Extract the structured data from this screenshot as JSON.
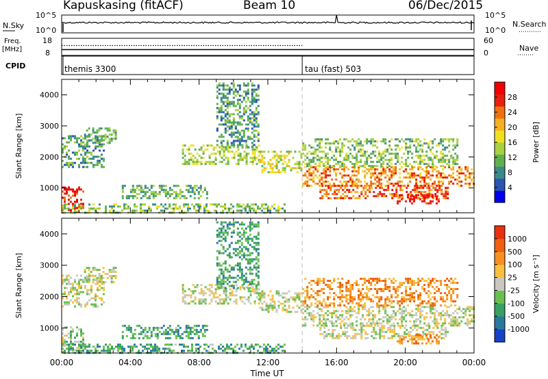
{
  "header": {
    "station": "Kapuskasing (fitACF)",
    "beam": "Beam 10",
    "date": "06/Dec/2015"
  },
  "side_labels": {
    "nsky": "N.Sky",
    "nsky_ticks": [
      "10^5",
      "10^0"
    ],
    "nsearch": "N.Search",
    "nsearch_ticks": [
      "10^5",
      "10^0"
    ],
    "freq": "Freq.",
    "freq_unit": "[MHz]",
    "freq_ticks": [
      "18",
      "8"
    ],
    "nave": "Nave",
    "nave_ticks": [
      "60",
      "0"
    ],
    "cpid": "CPID"
  },
  "cpid_segments": [
    {
      "label": "themis 3300",
      "start_hour": 0,
      "end_hour": 14
    },
    {
      "label": "tau (fast) 503",
      "start_hour": 14,
      "end_hour": 24
    }
  ],
  "chart_data": [
    {
      "type": "heatmap",
      "panel": "power",
      "ylabel": "Slant Range [km]",
      "xlabel": "",
      "xlim": [
        0,
        24
      ],
      "ylim": [
        200,
        4500
      ],
      "y_ticks": [
        1000,
        2000,
        3000,
        4000
      ],
      "colorbar": {
        "label": "Power [dB]",
        "ticks": [
          "4",
          "8",
          "12",
          "16",
          "20",
          "24",
          "28"
        ],
        "colors": [
          "#0000ee",
          "#2a55b0",
          "#3a8a8a",
          "#60b050",
          "#a8d040",
          "#f0e020",
          "#f8b020",
          "#f07010",
          "#e82010",
          "#f00000"
        ]
      },
      "regions": [
        {
          "t": [
            0.0,
            1.3
          ],
          "r": [
            250,
            1050
          ],
          "level": 0.86
        },
        {
          "t": [
            0.0,
            2.5
          ],
          "r": [
            1700,
            2700
          ],
          "level": 0.3
        },
        {
          "t": [
            1.3,
            3.2
          ],
          "r": [
            2450,
            2950
          ],
          "level": 0.35
        },
        {
          "t": [
            3.5,
            8.5
          ],
          "r": [
            700,
            1100
          ],
          "level": 0.35
        },
        {
          "t": [
            7.0,
            11.5
          ],
          "r": [
            1800,
            2400
          ],
          "level": 0.45
        },
        {
          "t": [
            9.0,
            11.5
          ],
          "r": [
            2300,
            4400
          ],
          "level": 0.3
        },
        {
          "t": [
            11.5,
            14.0
          ],
          "r": [
            1500,
            2200
          ],
          "level": 0.5
        },
        {
          "t": [
            14.0,
            24.0
          ],
          "r": [
            1100,
            1700
          ],
          "level": 0.72
        },
        {
          "t": [
            15.0,
            22.5
          ],
          "r": [
            700,
            1100
          ],
          "level": 0.78
        },
        {
          "t": [
            19.5,
            22.0
          ],
          "r": [
            500,
            800
          ],
          "level": 0.92
        },
        {
          "t": [
            0.0,
            13.0
          ],
          "r": [
            200,
            500
          ],
          "level": 0.4
        },
        {
          "t": [
            14.0,
            23.0
          ],
          "r": [
            1700,
            2600
          ],
          "level": 0.4
        }
      ]
    },
    {
      "type": "heatmap",
      "panel": "velocity",
      "ylabel": "Slant Range [km]",
      "xlabel": "Time UT",
      "xlim": [
        0,
        24
      ],
      "ylim": [
        200,
        4500
      ],
      "y_ticks": [
        1000,
        2000,
        3000,
        4000
      ],
      "x_ticks": [
        "00:00",
        "04:00",
        "08:00",
        "12:00",
        "16:00",
        "20:00",
        "00:00"
      ],
      "colorbar": {
        "label": "Velocity [m s⁻¹]",
        "ticks": [
          "1000",
          "500",
          "100",
          "25",
          "-25",
          "-100",
          "-500",
          "-1000"
        ],
        "colors": [
          "#1840c8",
          "#2878a0",
          "#38a060",
          "#68c050",
          "#c8c8c0",
          "#f8c040",
          "#f89020",
          "#f06010",
          "#e83010"
        ]
      },
      "regions": [
        {
          "t": [
            0.0,
            1.3
          ],
          "r": [
            250,
            1050
          ],
          "level": 0.45
        },
        {
          "t": [
            0.0,
            2.5
          ],
          "r": [
            1700,
            2700
          ],
          "level": 0.5
        },
        {
          "t": [
            1.3,
            3.2
          ],
          "r": [
            2450,
            2950
          ],
          "level": 0.5
        },
        {
          "t": [
            3.5,
            8.5
          ],
          "r": [
            700,
            1100
          ],
          "level": 0.3
        },
        {
          "t": [
            7.0,
            11.5
          ],
          "r": [
            1800,
            2400
          ],
          "level": 0.5
        },
        {
          "t": [
            9.0,
            11.5
          ],
          "r": [
            2300,
            4400
          ],
          "level": 0.3
        },
        {
          "t": [
            11.5,
            14.0
          ],
          "r": [
            1500,
            2200
          ],
          "level": 0.5
        },
        {
          "t": [
            14.0,
            24.0
          ],
          "r": [
            1100,
            1700
          ],
          "level": 0.5
        },
        {
          "t": [
            15.0,
            22.5
          ],
          "r": [
            700,
            1100
          ],
          "level": 0.5
        },
        {
          "t": [
            19.5,
            22.0
          ],
          "r": [
            500,
            800
          ],
          "level": 0.72
        },
        {
          "t": [
            0.0,
            13.0
          ],
          "r": [
            200,
            500
          ],
          "level": 0.3
        },
        {
          "t": [
            14.0,
            23.0
          ],
          "r": [
            1700,
            2600
          ],
          "level": 0.72
        }
      ]
    }
  ]
}
